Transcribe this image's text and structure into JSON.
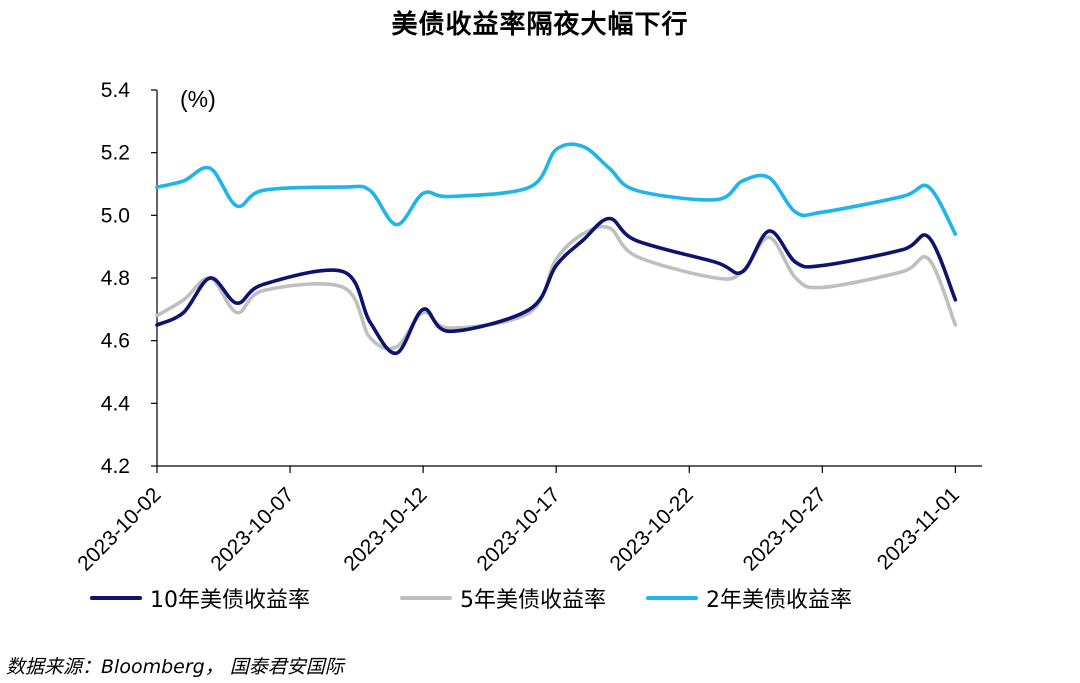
{
  "chart_data": {
    "type": "line",
    "title": "美债收益率隔夜大幅下行",
    "unit_label": "(%)",
    "ylim": [
      4.2,
      5.4
    ],
    "yticks": [
      "5.4",
      "5.2",
      "5.0",
      "4.8",
      "4.6",
      "4.4",
      "4.2"
    ],
    "x_range": [
      "2023-10-02",
      "2023-11-02"
    ],
    "xticks": [
      "2023-10-02",
      "2023-10-07",
      "2023-10-12",
      "2023-10-17",
      "2023-10-22",
      "2023-10-27",
      "2023-11-01"
    ],
    "grid": false,
    "legend_position": "bottom",
    "x": [
      "2023-10-02",
      "2023-10-03",
      "2023-10-04",
      "2023-10-05",
      "2023-10-06",
      "2023-10-09",
      "2023-10-10",
      "2023-10-11",
      "2023-10-12",
      "2023-10-13",
      "2023-10-16",
      "2023-10-17",
      "2023-10-18",
      "2023-10-19",
      "2023-10-20",
      "2023-10-23",
      "2023-10-24",
      "2023-10-25",
      "2023-10-26",
      "2023-10-27",
      "2023-10-30",
      "2023-10-31",
      "2023-11-01"
    ],
    "series": [
      {
        "name": "10年美债收益率",
        "color": "#0d1470",
        "values": [
          4.65,
          4.69,
          4.8,
          4.72,
          4.78,
          4.82,
          4.66,
          4.56,
          4.7,
          4.63,
          4.7,
          4.84,
          4.92,
          4.99,
          4.92,
          4.85,
          4.82,
          4.95,
          4.85,
          4.84,
          4.89,
          4.93,
          4.73
        ]
      },
      {
        "name": "5年美债收益率",
        "color": "#bfbfbf",
        "values": [
          4.68,
          4.73,
          4.8,
          4.69,
          4.76,
          4.77,
          4.61,
          4.58,
          4.69,
          4.64,
          4.69,
          4.86,
          4.94,
          4.96,
          4.87,
          4.8,
          4.82,
          4.93,
          4.8,
          4.77,
          4.82,
          4.86,
          4.65
        ]
      },
      {
        "name": "2年美债收益率",
        "color": "#1fb4ea",
        "values": [
          5.09,
          5.11,
          5.15,
          5.03,
          5.08,
          5.09,
          5.08,
          4.97,
          5.07,
          5.06,
          5.09,
          5.21,
          5.22,
          5.15,
          5.08,
          5.05,
          5.11,
          5.12,
          5.01,
          5.01,
          5.06,
          5.09,
          4.94
        ]
      }
    ]
  },
  "source_text": "数据来源：Bloomberg， 国泰君安国际"
}
